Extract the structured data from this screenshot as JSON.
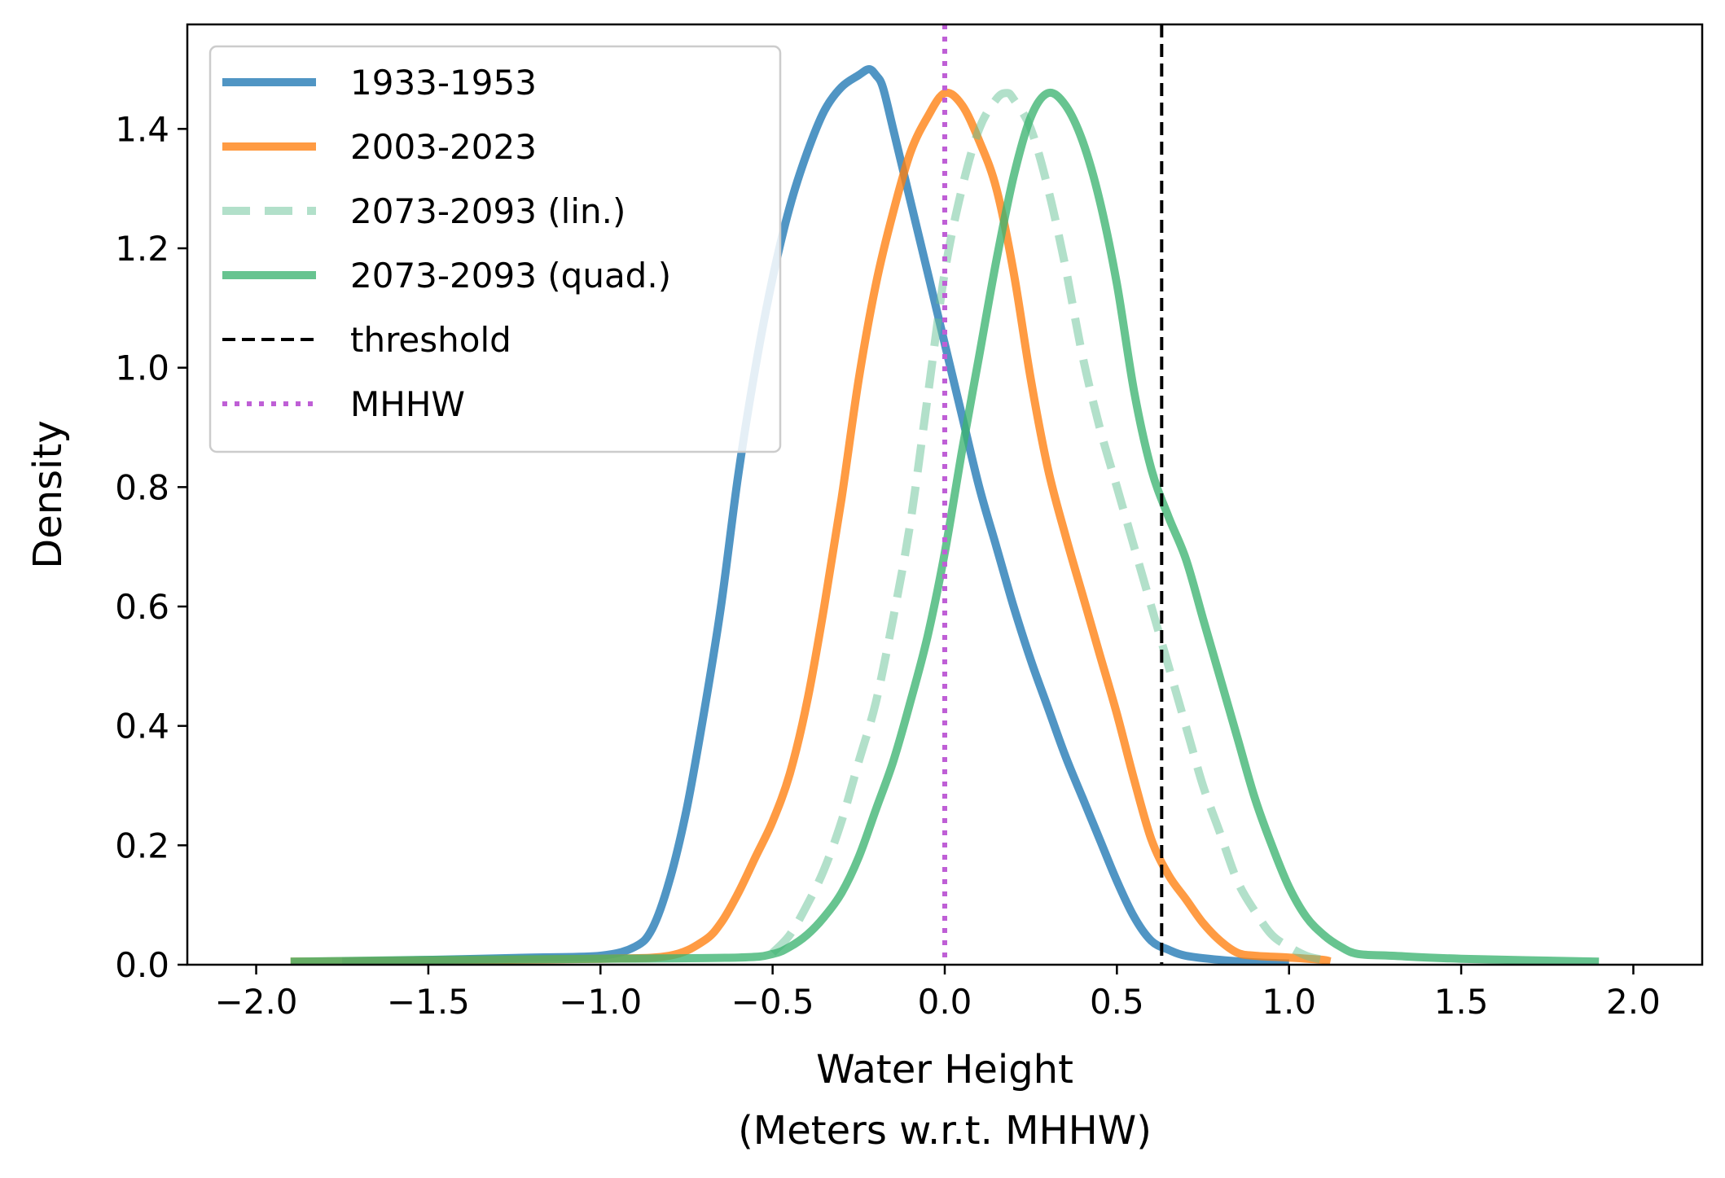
{
  "chart_data": {
    "type": "line",
    "title": "",
    "xlabel": [
      "Water Height",
      "(Meters w.r.t. MHHW)"
    ],
    "ylabel": "Density",
    "xlim": [
      -2.2,
      2.2
    ],
    "ylim": [
      0.0,
      1.575
    ],
    "xticks": [
      -2.0,
      -1.5,
      -1.0,
      -0.5,
      0.0,
      0.5,
      1.0,
      1.5,
      2.0
    ],
    "xtick_labels": [
      "−2.0",
      "−1.5",
      "−1.0",
      "−0.5",
      "0.0",
      "0.5",
      "1.0",
      "1.5",
      "2.0"
    ],
    "yticks": [
      0.0,
      0.2,
      0.4,
      0.6,
      0.8,
      1.0,
      1.2,
      1.4
    ],
    "ytick_labels": [
      "0.0",
      "0.2",
      "0.4",
      "0.6",
      "0.8",
      "1.0",
      "1.2",
      "1.4"
    ],
    "grid": false,
    "legend_position": "upper-left",
    "series": [
      {
        "name": "1933-1953",
        "color": "#1f77b4",
        "style": "solid",
        "x": [
          -1.75,
          -1.5,
          -1.2,
          -1.0,
          -0.9,
          -0.85,
          -0.8,
          -0.75,
          -0.7,
          -0.65,
          -0.6,
          -0.55,
          -0.5,
          -0.45,
          -0.4,
          -0.35,
          -0.3,
          -0.25,
          -0.22,
          -0.2,
          -0.18,
          -0.15,
          -0.1,
          -0.05,
          0.0,
          0.05,
          0.1,
          0.15,
          0.2,
          0.25,
          0.3,
          0.35,
          0.4,
          0.45,
          0.5,
          0.55,
          0.6,
          0.65,
          0.7,
          0.8,
          0.9,
          1.0
        ],
        "y": [
          0.005,
          0.008,
          0.012,
          0.015,
          0.03,
          0.06,
          0.14,
          0.26,
          0.42,
          0.6,
          0.82,
          1.0,
          1.15,
          1.27,
          1.36,
          1.43,
          1.47,
          1.49,
          1.5,
          1.49,
          1.47,
          1.4,
          1.28,
          1.16,
          1.04,
          0.92,
          0.8,
          0.7,
          0.6,
          0.51,
          0.43,
          0.35,
          0.28,
          0.21,
          0.14,
          0.08,
          0.04,
          0.025,
          0.015,
          0.008,
          0.004,
          0.002
        ]
      },
      {
        "name": "2003-2023",
        "color": "#ff7f0e",
        "style": "solid",
        "x": [
          -1.9,
          -1.5,
          -1.0,
          -0.8,
          -0.7,
          -0.65,
          -0.6,
          -0.55,
          -0.5,
          -0.45,
          -0.4,
          -0.35,
          -0.3,
          -0.25,
          -0.2,
          -0.15,
          -0.1,
          -0.05,
          0.0,
          0.05,
          0.1,
          0.15,
          0.2,
          0.25,
          0.3,
          0.35,
          0.4,
          0.45,
          0.5,
          0.55,
          0.6,
          0.65,
          0.7,
          0.75,
          0.8,
          0.85,
          0.9,
          1.0,
          1.1,
          1.12
        ],
        "y": [
          0.005,
          0.007,
          0.01,
          0.015,
          0.04,
          0.07,
          0.12,
          0.18,
          0.24,
          0.32,
          0.44,
          0.6,
          0.78,
          0.98,
          1.14,
          1.26,
          1.36,
          1.42,
          1.46,
          1.44,
          1.38,
          1.3,
          1.16,
          0.98,
          0.83,
          0.72,
          0.62,
          0.52,
          0.42,
          0.31,
          0.21,
          0.15,
          0.11,
          0.07,
          0.04,
          0.02,
          0.015,
          0.012,
          0.008,
          0.005
        ]
      },
      {
        "name": "2073-2093 (lin.)",
        "color": "#66c295",
        "style": "dashed",
        "x": [
          -0.5,
          -0.45,
          -0.4,
          -0.35,
          -0.3,
          -0.25,
          -0.2,
          -0.15,
          -0.1,
          -0.05,
          0.0,
          0.05,
          0.1,
          0.15,
          0.18,
          0.2,
          0.25,
          0.3,
          0.35,
          0.4,
          0.45,
          0.5,
          0.55,
          0.6,
          0.65,
          0.7,
          0.75,
          0.8,
          0.85,
          0.9,
          0.95,
          1.0,
          1.05,
          1.1
        ],
        "y": [
          0.02,
          0.05,
          0.1,
          0.16,
          0.24,
          0.34,
          0.44,
          0.58,
          0.74,
          0.95,
          1.16,
          1.3,
          1.4,
          1.45,
          1.46,
          1.45,
          1.4,
          1.3,
          1.17,
          1.02,
          0.9,
          0.8,
          0.7,
          0.6,
          0.5,
          0.4,
          0.3,
          0.22,
          0.14,
          0.09,
          0.05,
          0.03,
          0.015,
          0.008
        ]
      },
      {
        "name": "2073-2093 (quad.)",
        "color": "#3cb371",
        "style": "solid",
        "x": [
          -1.9,
          -1.5,
          -1.0,
          -0.6,
          -0.5,
          -0.45,
          -0.4,
          -0.35,
          -0.3,
          -0.25,
          -0.2,
          -0.15,
          -0.1,
          -0.05,
          0.0,
          0.05,
          0.1,
          0.15,
          0.2,
          0.25,
          0.3,
          0.35,
          0.4,
          0.45,
          0.5,
          0.55,
          0.6,
          0.65,
          0.7,
          0.75,
          0.8,
          0.85,
          0.9,
          0.95,
          1.0,
          1.05,
          1.1,
          1.15,
          1.2,
          1.3,
          1.5,
          1.9
        ],
        "y": [
          0.005,
          0.008,
          0.01,
          0.012,
          0.018,
          0.03,
          0.05,
          0.08,
          0.12,
          0.18,
          0.26,
          0.34,
          0.44,
          0.55,
          0.69,
          0.86,
          1.02,
          1.18,
          1.32,
          1.42,
          1.46,
          1.44,
          1.38,
          1.28,
          1.14,
          0.96,
          0.83,
          0.75,
          0.68,
          0.58,
          0.48,
          0.38,
          0.28,
          0.2,
          0.13,
          0.08,
          0.05,
          0.03,
          0.018,
          0.015,
          0.01,
          0.005
        ]
      }
    ],
    "reference_lines": [
      {
        "name": "threshold",
        "x": 0.63,
        "color": "#000000",
        "style": "dashed"
      },
      {
        "name": "MHHW",
        "x": 0.0,
        "color": "#bf5fd6",
        "style": "dotted"
      }
    ]
  }
}
